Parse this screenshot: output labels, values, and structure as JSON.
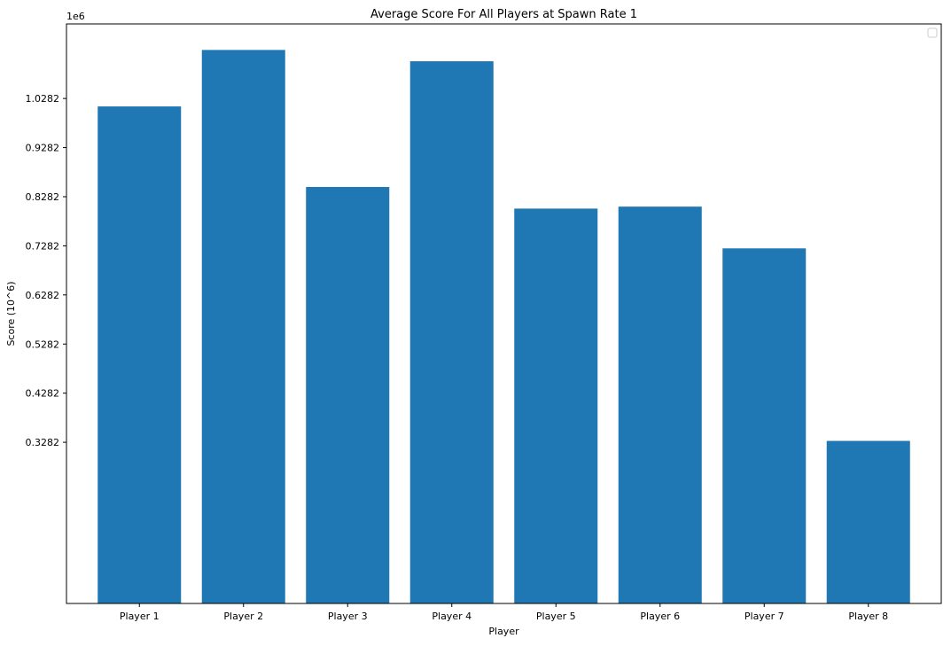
{
  "chart_data": {
    "type": "bar",
    "title": "Average Score For All Players at Spawn Rate 1",
    "xlabel": "Player",
    "ylabel": "Score (10^6)",
    "offset_text": "1e6",
    "categories": [
      "Player 1",
      "Player 2",
      "Player 3",
      "Player 4",
      "Player 5",
      "Player 6",
      "Player 7",
      "Player 8"
    ],
    "values": [
      1012000,
      1127000,
      848000,
      1104000,
      804000,
      808000,
      723000,
      331000
    ],
    "yticks": [
      328200,
      428200,
      528200,
      628200,
      728200,
      828200,
      928200,
      1028200
    ],
    "ytick_labels": [
      "0.3282",
      "0.4282",
      "0.5282",
      "0.6282",
      "0.7282",
      "0.8282",
      "0.9282",
      "1.0282"
    ],
    "ylim": [
      0,
      1180000
    ],
    "grid": false,
    "legend": "top-right",
    "bar_color": "#1f77b4"
  }
}
